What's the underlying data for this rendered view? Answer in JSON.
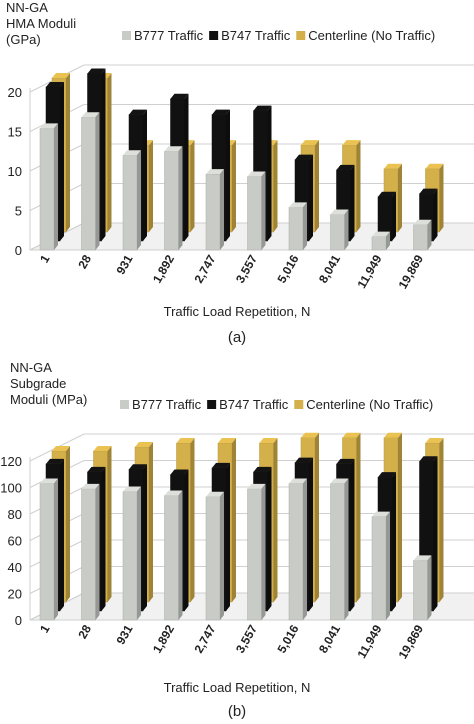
{
  "chart_data": [
    {
      "type": "bar",
      "panel_label": "(a)",
      "y_title_lines": [
        "NN-GA",
        "HMA Moduli",
        "(GPa)"
      ],
      "xlabel": "Traffic Load Repetition, N",
      "categories": [
        "1",
        "28",
        "931",
        "1,892",
        "2,747",
        "3,557",
        "5,016",
        "8,041",
        "11,949",
        "19,869"
      ],
      "yticks": [
        "0",
        "5",
        "10",
        "15",
        "20"
      ],
      "ylim": [
        0,
        20
      ],
      "legend_position": "top-right",
      "series": [
        {
          "name": "B777 Traffic",
          "color": "#c8cbc6",
          "values": [
            15.4,
            16.8,
            12.0,
            12.5,
            9.6,
            9.3,
            5.4,
            4.5,
            1.7,
            3.2
          ]
        },
        {
          "name": "B747 Traffic",
          "color": "#111111",
          "values": [
            19.5,
            21.2,
            16.0,
            18.0,
            16.0,
            16.5,
            10.3,
            9.0,
            5.6,
            6.0
          ]
        },
        {
          "name": "Centerline (No Traffic)",
          "color": "#d4b04a",
          "values": [
            19.5,
            19.5,
            11.0,
            11.0,
            11.0,
            11.0,
            11.0,
            11.0,
            8.0,
            8.0
          ]
        }
      ]
    },
    {
      "type": "bar",
      "panel_label": "(b)",
      "y_title_lines": [
        "NN-GA",
        "Subgrade",
        "Moduli (MPa)"
      ],
      "xlabel": "Traffic Load Repetition, N",
      "categories": [
        "1",
        "28",
        "931",
        "1,892",
        "2,747",
        "3,557",
        "5,016",
        "8,041",
        "11,949",
        "19,869"
      ],
      "yticks": [
        "0",
        "20",
        "40",
        "60",
        "80",
        "100",
        "120"
      ],
      "ylim": [
        0,
        120
      ],
      "legend_position": "top-right",
      "series": [
        {
          "name": "B777 Traffic",
          "color": "#c8cbc6",
          "values": [
            103,
            99,
            97,
            94,
            93,
            99,
            103,
            103,
            78,
            45
          ]
        },
        {
          "name": "B747 Traffic",
          "color": "#111111",
          "values": [
            111,
            105,
            107,
            103,
            108,
            105,
            112,
            111,
            101,
            113
          ]
        },
        {
          "name": "Centerline (No Traffic)",
          "color": "#d4b04a",
          "values": [
            114,
            114,
            117,
            120,
            120,
            120,
            124,
            124,
            124,
            120
          ]
        }
      ]
    }
  ]
}
